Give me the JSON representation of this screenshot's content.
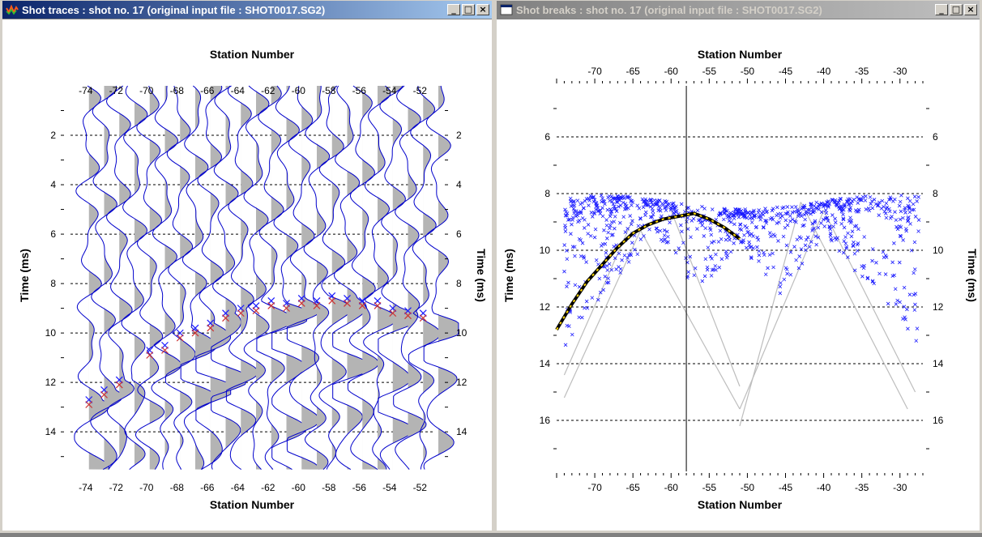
{
  "left_window": {
    "title": "Shot traces : shot no. 17 (original input file : SHOT0017.SG2)",
    "x_label_top": "Station Number",
    "x_label_bottom": "Station Number",
    "y_label_left": "Time (ms)",
    "y_label_right": "Time (ms)",
    "x_ticks": [
      "-74",
      "-72",
      "-70",
      "-68",
      "-66",
      "-64",
      "-62",
      "-60",
      "-58",
      "-56",
      "-54",
      "-52"
    ],
    "y_ticks": [
      "2",
      "4",
      "6",
      "8",
      "10",
      "12",
      "14"
    ]
  },
  "right_window": {
    "title": "Shot breaks : shot no. 17 (original input file : SHOT0017.SG2)",
    "x_label_top": "Station Number",
    "x_label_bottom": "Station Number",
    "y_label_left": "Time (ms)",
    "y_label_right": "Time (ms)",
    "x_ticks": [
      "-70",
      "-65",
      "-60",
      "-55",
      "-50",
      "-45",
      "-40",
      "-35",
      "-30"
    ],
    "y_ticks": [
      "6",
      "8",
      "10",
      "12",
      "14",
      "16"
    ]
  },
  "window_buttons": {
    "minimize": "_",
    "maximize": "□",
    "close": "×"
  },
  "colors": {
    "trace": "#0000cc",
    "fill": "#b4b4b4",
    "picks_blue": "#1a1aff",
    "picks_red": "#cc3333",
    "picks_green": "#33aa33",
    "grid": "#000000"
  },
  "chart_data": [
    {
      "type": "line",
      "title": "",
      "xlabel": "Station Number",
      "ylabel": "Time (ms)",
      "xlim": [
        -75,
        -51
      ],
      "ylim": [
        15.6,
        0
      ],
      "grid": true,
      "picks": {
        "x": [
          -74,
          -73,
          -72,
          -70,
          -69,
          -68,
          -67,
          -66,
          -65,
          -64,
          -63,
          -62,
          -61,
          -60,
          -59,
          -58,
          -57,
          -56,
          -55,
          -54,
          -53,
          -52
        ],
        "y": [
          12.7,
          12.3,
          11.9,
          10.7,
          10.5,
          10.0,
          9.8,
          9.6,
          9.2,
          9.0,
          8.9,
          8.7,
          8.8,
          8.6,
          8.7,
          8.5,
          8.6,
          8.7,
          8.7,
          9.0,
          9.1,
          9.2
        ]
      }
    },
    {
      "type": "scatter",
      "title": "",
      "xlabel": "Station Number",
      "ylabel": "Time (ms)",
      "xlim": [
        -75,
        -27
      ],
      "ylim": [
        17.8,
        4.2
      ],
      "grid": true,
      "vertical_line_x": -58,
      "selected_picks": {
        "x": [
          -75,
          -73,
          -71,
          -69,
          -67,
          -65,
          -63,
          -61,
          -59,
          -57,
          -55,
          -53,
          -51
        ],
        "y": [
          12.8,
          11.9,
          11.1,
          10.5,
          9.9,
          9.4,
          9.1,
          8.9,
          8.8,
          8.7,
          8.9,
          9.2,
          9.6
        ]
      }
    }
  ]
}
